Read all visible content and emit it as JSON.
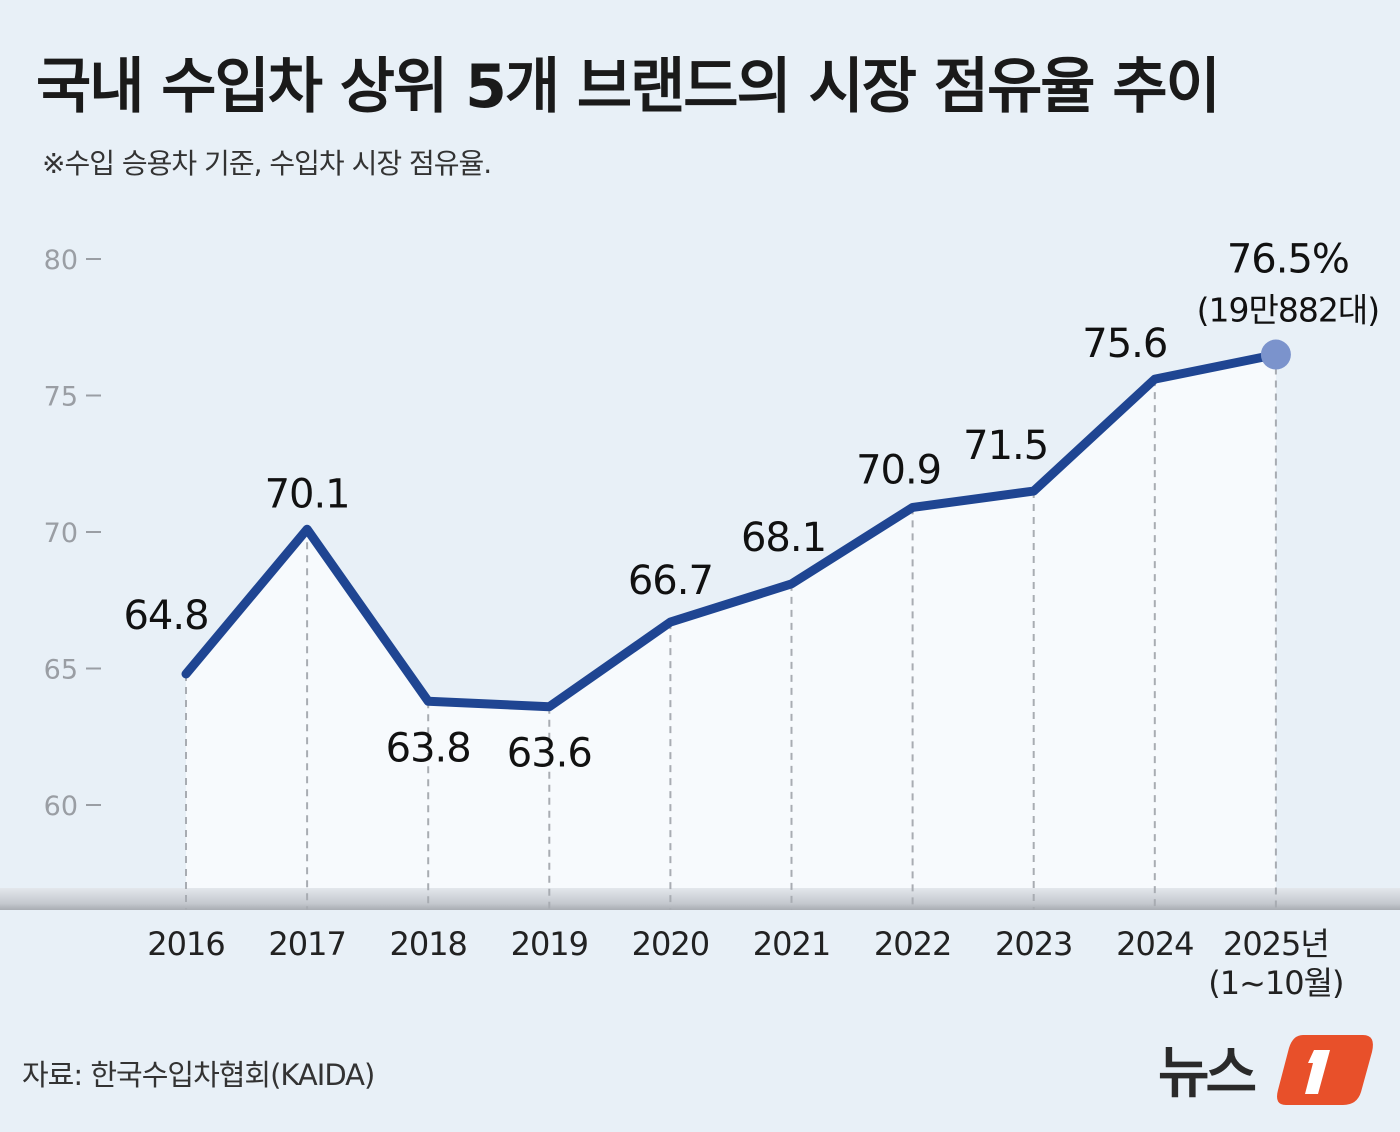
{
  "title": "국내 수입차 상위 5개 브랜드의 시장 점유율 추이",
  "subtitle": "※수입 승용차 기준, 수입차 시장 점유율.",
  "source": "자료: 한국수입차협회(KAIDA)",
  "logo_text": "뉴스1",
  "colors": {
    "line": "#1f4592",
    "background": "#e8f0f7",
    "area": "#f7fafd",
    "highlight_point": "#7b93cc",
    "logo": "#e8502a"
  },
  "chart_data": {
    "type": "line",
    "title": "국내 수입차 상위 5개 브랜드의 시장 점유율 추이",
    "categories": [
      "2016",
      "2017",
      "2018",
      "2019",
      "2020",
      "2021",
      "2022",
      "2023",
      "2024",
      "2025년"
    ],
    "category_sublabels": [
      "",
      "",
      "",
      "",
      "",
      "",
      "",
      "",
      "",
      "(1~10월)"
    ],
    "values": [
      64.8,
      70.1,
      63.8,
      63.6,
      66.7,
      68.1,
      70.9,
      71.5,
      75.6,
      76.5
    ],
    "data_labels": [
      "64.8",
      "70.1",
      "63.8",
      "63.6",
      "66.7",
      "68.1",
      "70.9",
      "71.5",
      "75.6",
      "76.5%"
    ],
    "last_point_note": "(19만882대)",
    "yticks": [
      60,
      65,
      70,
      75,
      80
    ],
    "ylim": [
      60,
      80
    ],
    "grid": false,
    "xlabel": "",
    "ylabel": ""
  }
}
